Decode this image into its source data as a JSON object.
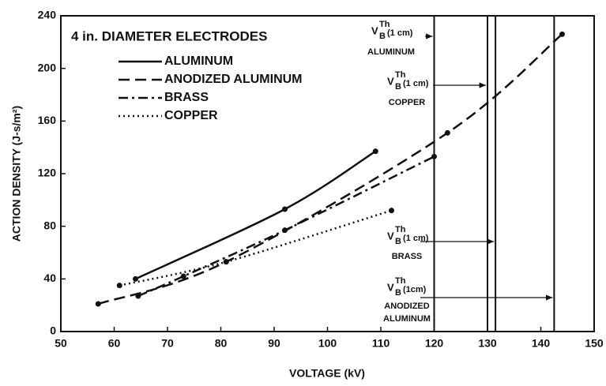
{
  "chart_data": {
    "type": "line",
    "xlabel": "VOLTAGE (kV)",
    "ylabel": "ACTION DENSITY (J-s/m²)",
    "legend_title": "4 in. DIAMETER ELECTRODES",
    "xlim": [
      50,
      150
    ],
    "xticks": [
      50,
      60,
      70,
      80,
      90,
      100,
      110,
      120,
      130,
      140,
      150
    ],
    "ylim": [
      0,
      240
    ],
    "yticks": [
      0,
      40,
      80,
      120,
      160,
      200,
      240
    ],
    "series": [
      {
        "name": "ALUMINUM",
        "color": "#111111",
        "dash": "solid",
        "x": [
          64,
          92,
          109
        ],
        "values": [
          40,
          93,
          137
        ]
      },
      {
        "name": "ANODIZED ALUMINUM",
        "color": "#111111",
        "dash": "dashed",
        "x": [
          57,
          81,
          122.5,
          144
        ],
        "values": [
          21,
          53,
          151,
          226
        ]
      },
      {
        "name": "BRASS",
        "color": "#111111",
        "dash": "dashdot",
        "x": [
          64.5,
          73,
          92,
          120
        ],
        "values": [
          27,
          42,
          77,
          133
        ]
      },
      {
        "name": "COPPER",
        "color": "#111111",
        "dash": "dotted",
        "x": [
          61,
          81,
          112
        ],
        "values": [
          35,
          53,
          92
        ]
      }
    ],
    "vlines": [
      120,
      130,
      131.5,
      142.5
    ],
    "annotations": [
      {
        "symbol": "V",
        "sub": "B",
        "sup": "Th",
        "tail": "(1 cm)",
        "label": [
          "ALUMINUM"
        ],
        "x": 120
      },
      {
        "symbol": "V",
        "sub": "B",
        "sup": "Th",
        "tail": "(1 cm)",
        "label": [
          "COPPER"
        ],
        "x": 130
      },
      {
        "symbol": "V",
        "sub": "B",
        "sup": "Th",
        "tail": "(1 cm)",
        "label": [
          "BRASS"
        ],
        "x": 131.5
      },
      {
        "symbol": "V",
        "sub": "B",
        "sup": "Th",
        "tail": "(1cm)",
        "label": [
          "ANODIZED",
          "ALUMINUM"
        ],
        "x": 142.5
      }
    ]
  }
}
